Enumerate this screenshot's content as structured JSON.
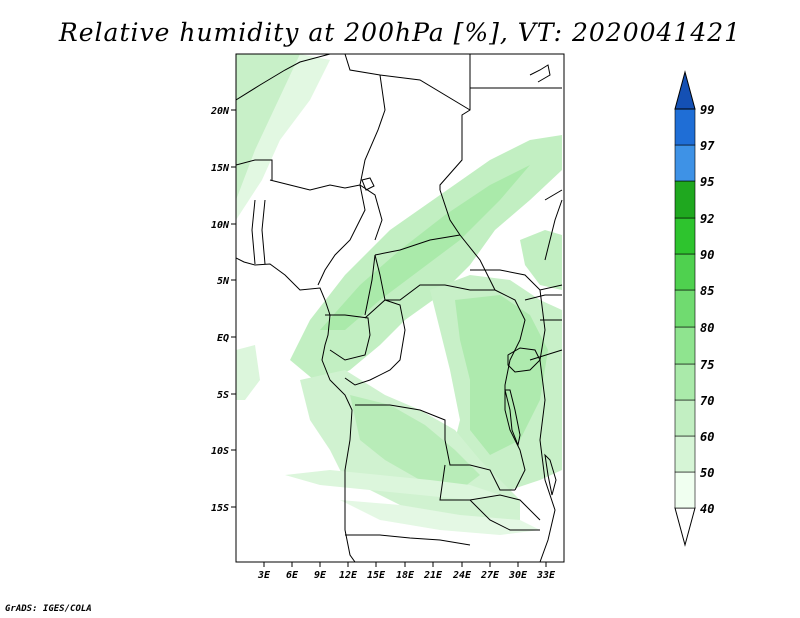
{
  "title": "Relative humidity at 200hPa [%], VT: 2020041421",
  "credit": "GrADS: IGES/COLA",
  "map": {
    "lat_labels": [
      "20N",
      "15N",
      "10N",
      "5N",
      "EQ",
      "5S",
      "10S",
      "15S"
    ],
    "lon_labels": [
      "3E",
      "6E",
      "9E",
      "12E",
      "15E",
      "18E",
      "21E",
      "24E",
      "27E",
      "30E",
      "33E"
    ]
  },
  "colorbar": {
    "labels": [
      "40",
      "50",
      "60",
      "70",
      "75",
      "80",
      "85",
      "90",
      "92",
      "95",
      "97",
      "99"
    ],
    "colors": [
      "#f0fff0",
      "#d6f5d6",
      "#c2efc2",
      "#aaeaaa",
      "#8fe48f",
      "#70db70",
      "#4fd14f",
      "#2ec42e",
      "#1fa81f",
      "#128a12",
      "#3e92e6",
      "#1f6ed6",
      "#1450b4"
    ]
  }
}
